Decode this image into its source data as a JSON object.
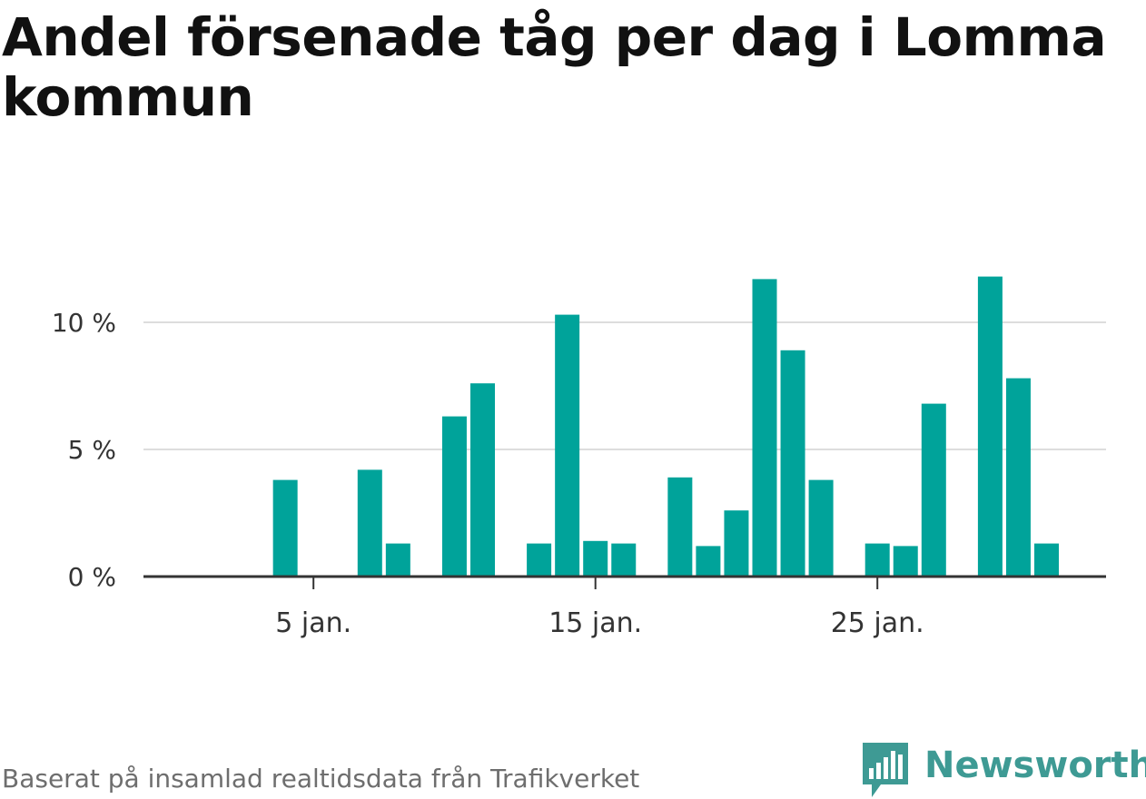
{
  "title": "Andel försenade tåg per dag i Lomma kommun",
  "footer": "Baserat på insamlad realtidsdata från Trafikverket",
  "brand": {
    "name": "Newsworthy"
  },
  "colors": {
    "bar": "#00a39a",
    "grid": "#dddddd",
    "axis": "#333333",
    "tick_text": "#333333"
  },
  "chart_data": {
    "type": "bar",
    "title": "Andel försenade tåg per dag i Lomma kommun",
    "xlabel": "",
    "ylabel": "",
    "unit": "%",
    "ylim": [
      0,
      12
    ],
    "yticks": [
      0,
      5,
      10
    ],
    "ytick_labels": [
      "0 %",
      "5 %",
      "10 %"
    ],
    "xticks": [
      5,
      15,
      25
    ],
    "xtick_labels": [
      "5 jan.",
      "15 jan.",
      "25 jan."
    ],
    "grid": true,
    "x": [
      1,
      2,
      3,
      4,
      5,
      6,
      7,
      8,
      9,
      10,
      11,
      12,
      13,
      14,
      15,
      16,
      17,
      18,
      19,
      20,
      21,
      22,
      23,
      24,
      25,
      26,
      27,
      28,
      29,
      30,
      31
    ],
    "values": [
      0,
      0,
      0,
      3.8,
      0,
      0,
      4.2,
      1.3,
      0,
      6.3,
      7.6,
      0,
      1.3,
      10.3,
      1.4,
      1.3,
      0,
      3.9,
      1.2,
      2.6,
      11.7,
      8.9,
      3.8,
      0,
      1.3,
      1.2,
      6.8,
      0,
      11.8,
      7.8,
      1.3
    ]
  }
}
